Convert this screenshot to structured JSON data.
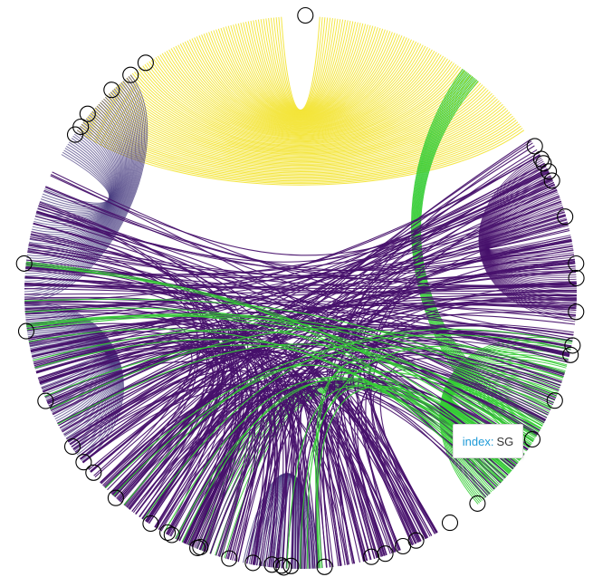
{
  "chart_data": {
    "type": "chord",
    "tooltip": {
      "key": "index:",
      "value": "SG"
    },
    "colors": {
      "yellow": "#f3e53a",
      "purple": "#46106b",
      "slate": "#463b7f",
      "green": "#33cc33",
      "node": "#000000"
    }
  }
}
